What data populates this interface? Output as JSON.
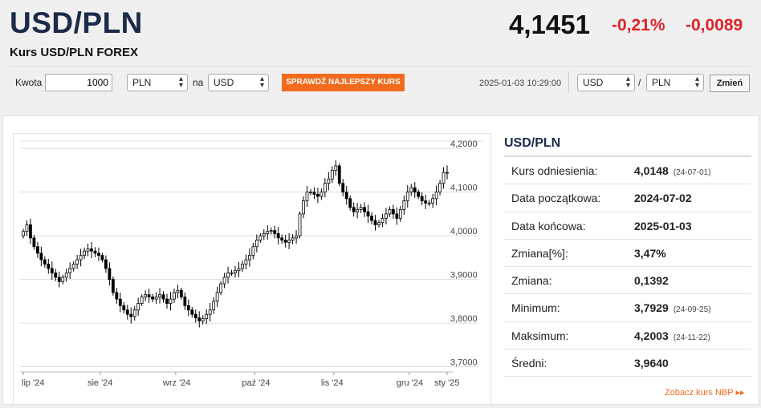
{
  "header": {
    "pair": "USD/PLN",
    "subtitle": "Kurs USD/PLN FOREX",
    "rate": "4,1451",
    "change_pct": "-0,21%",
    "change_abs": "-0,0089"
  },
  "controls": {
    "amount_label": "Kwota",
    "amount_value": "1000",
    "from_currency": "PLN",
    "na_label": "na",
    "to_currency": "USD",
    "best_rate_button": "SPRAWDŹ NAJLEPSZY KURS",
    "timestamp": "2025-01-03 10:29:00",
    "pair_base": "USD",
    "slash": "/",
    "pair_quote": "PLN",
    "change_button": "Zmień"
  },
  "info": {
    "title": "USD/PLN",
    "rows": [
      {
        "label": "Kurs odniesienia:",
        "value": "4,0148",
        "date": "(24-07-01)"
      },
      {
        "label": "Data początkowa:",
        "value": "2024-07-02",
        "date": ""
      },
      {
        "label": "Data końcowa:",
        "value": "2025-01-03",
        "date": ""
      },
      {
        "label": "Zmiana[%]:",
        "value": "3,47%",
        "date": ""
      },
      {
        "label": "Zmiana:",
        "value": "0,1392",
        "date": ""
      },
      {
        "label": "Minimum:",
        "value": "3,7929",
        "date": "(24-09-25)"
      },
      {
        "label": "Maksimum:",
        "value": "4,2003",
        "date": "(24-11-22)"
      },
      {
        "label": "Średni:",
        "value": "3,9640",
        "date": ""
      }
    ],
    "nbp_link": "Zobacz kurs NBP ▸▸"
  },
  "colors": {
    "accent_orange": "#f26b1d",
    "negative_red": "#e0232a",
    "title_navy": "#1c2b4a"
  },
  "chart_data": {
    "type": "candlestick",
    "xlabel": "",
    "ylabel": "",
    "ylim": [
      3.69,
      4.215
    ],
    "y_ticks": [
      "4,2000",
      "4,1000",
      "4,0000",
      "3,9000",
      "3,8000",
      "3,7000"
    ],
    "y_tick_values": [
      4.2,
      4.1,
      4.0,
      3.9,
      3.8,
      3.7
    ],
    "x_ticks": [
      "lip '24",
      "sie '24",
      "wrz '24",
      "paź '24",
      "lis '24",
      "gru '24",
      "sty '25"
    ],
    "grid": true,
    "close_series": [
      4.01,
      4.025,
      3.995,
      3.975,
      3.96,
      3.945,
      3.935,
      3.925,
      3.915,
      3.905,
      3.895,
      3.905,
      3.915,
      3.925,
      3.935,
      3.945,
      3.955,
      3.965,
      3.97,
      3.965,
      3.96,
      3.955,
      3.945,
      3.925,
      3.9,
      3.87,
      3.855,
      3.84,
      3.83,
      3.82,
      3.815,
      3.83,
      3.845,
      3.86,
      3.865,
      3.86,
      3.855,
      3.86,
      3.865,
      3.855,
      3.845,
      3.855,
      3.87,
      3.875,
      3.86,
      3.84,
      3.83,
      3.82,
      3.812,
      3.805,
      3.81,
      3.82,
      3.83,
      3.85,
      3.87,
      3.89,
      3.905,
      3.915,
      3.915,
      3.92,
      3.925,
      3.935,
      3.945,
      3.955,
      3.975,
      3.99,
      4.0,
      4.005,
      4.01,
      4.012,
      4.005,
      3.995,
      3.99,
      3.985,
      3.99,
      3.995,
      4.0,
      4.05,
      4.08,
      4.1,
      4.1,
      4.095,
      4.09,
      4.1,
      4.12,
      4.13,
      4.15,
      4.16,
      4.12,
      4.1,
      4.085,
      4.065,
      4.055,
      4.06,
      4.065,
      4.055,
      4.045,
      4.035,
      4.025,
      4.03,
      4.04,
      4.05,
      4.06,
      4.05,
      4.04,
      4.06,
      4.08,
      4.1,
      4.11,
      4.1,
      4.09,
      4.08,
      4.075,
      4.075,
      4.085,
      4.1,
      4.12,
      4.145,
      4.1451
    ]
  }
}
